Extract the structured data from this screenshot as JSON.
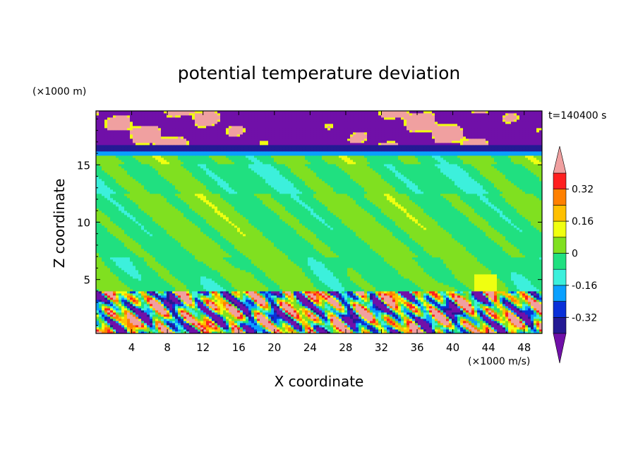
{
  "chart_data": {
    "type": "heatmap",
    "title": "potential temperature deviation",
    "xlabel": "X coordinate",
    "ylabel": "Z coordinate",
    "x_unit": "(×1000 m/s)",
    "y_unit": "(×1000 m)",
    "time_label": "t=140400 s",
    "xlim": [
      0,
      50
    ],
    "ylim": [
      0.3,
      19.7
    ],
    "x_ticks": [
      4,
      8,
      12,
      16,
      20,
      24,
      28,
      32,
      36,
      40,
      44,
      48
    ],
    "y_ticks": [
      5,
      10,
      15
    ],
    "colorbar": {
      "levels": [
        -0.4,
        -0.32,
        -0.24,
        -0.16,
        -0.08,
        0,
        0.08,
        0.16,
        0.24,
        0.32,
        0.4
      ],
      "labels": [
        "0.32",
        "0.16",
        "0",
        "-0.16",
        "-0.32"
      ],
      "label_values": [
        0.32,
        0.16,
        0,
        -0.16,
        -0.32
      ],
      "colors_bottom_to_top": [
        "#7010a8",
        "#241a94",
        "#0a30d8",
        "#0aa0ff",
        "#3cf0dc",
        "#20e080",
        "#80e020",
        "#f0ff10",
        "#ffc000",
        "#ff8000",
        "#ff2020",
        "#ff3060",
        "#f0a0a0"
      ],
      "extend": "both"
    },
    "layers": [
      {
        "z_range": [
          16.8,
          19.7
        ],
        "dominant": -0.45,
        "description": "violet band with pink blobs"
      },
      {
        "z_range": [
          15.8,
          16.8
        ],
        "dominant": -0.2,
        "description": "blue/cyan band"
      },
      {
        "z_range": [
          4.0,
          15.8
        ],
        "dominant": 0.0,
        "description": "green field"
      },
      {
        "z_range": [
          0.3,
          4.0
        ],
        "dominant": 0.0,
        "description": "turbulent mixed layer"
      }
    ]
  }
}
